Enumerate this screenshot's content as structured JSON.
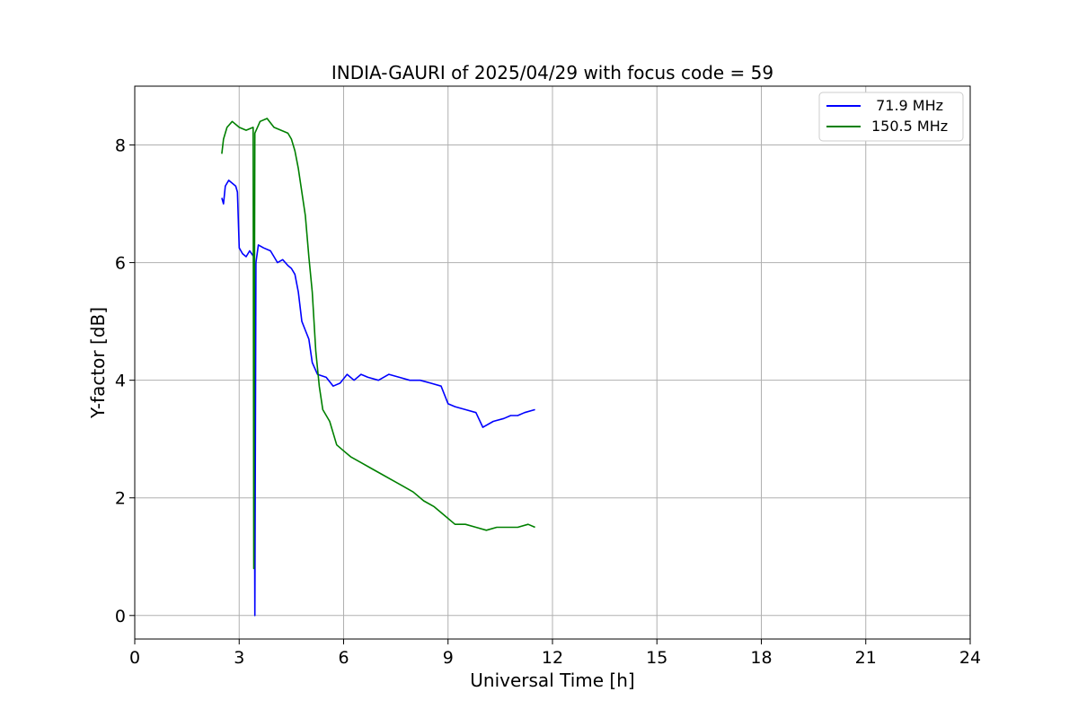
{
  "chart_data": {
    "type": "line",
    "title": "INDIA-GAURI of 2025/04/29 with focus code = 59",
    "xlabel": "Universal Time [h]",
    "ylabel": "Y-factor [dB]",
    "xlim": [
      0,
      24
    ],
    "ylim": [
      -0.4,
      9.0
    ],
    "xticks": [
      0,
      3,
      6,
      9,
      12,
      15,
      18,
      21,
      24
    ],
    "yticks": [
      0,
      2,
      4,
      6,
      8
    ],
    "grid": true,
    "legend_position": "top-right",
    "series": [
      {
        "name": " 71.9 MHz",
        "color": "#0000ff",
        "points": [
          [
            2.5,
            7.1
          ],
          [
            2.55,
            7.0
          ],
          [
            2.6,
            7.3
          ],
          [
            2.7,
            7.4
          ],
          [
            2.8,
            7.35
          ],
          [
            2.9,
            7.3
          ],
          [
            2.95,
            7.2
          ],
          [
            3.0,
            6.25
          ],
          [
            3.05,
            6.2
          ],
          [
            3.1,
            6.15
          ],
          [
            3.2,
            6.1
          ],
          [
            3.3,
            6.2
          ],
          [
            3.42,
            6.1
          ],
          [
            3.45,
            0.0
          ],
          [
            3.48,
            6.0
          ],
          [
            3.55,
            6.3
          ],
          [
            3.7,
            6.25
          ],
          [
            3.9,
            6.2
          ],
          [
            4.0,
            6.1
          ],
          [
            4.1,
            6.0
          ],
          [
            4.25,
            6.05
          ],
          [
            4.4,
            5.95
          ],
          [
            4.5,
            5.9
          ],
          [
            4.6,
            5.8
          ],
          [
            4.7,
            5.5
          ],
          [
            4.8,
            5.0
          ],
          [
            4.9,
            4.85
          ],
          [
            5.0,
            4.7
          ],
          [
            5.1,
            4.3
          ],
          [
            5.25,
            4.1
          ],
          [
            5.5,
            4.05
          ],
          [
            5.7,
            3.9
          ],
          [
            5.9,
            3.95
          ],
          [
            6.1,
            4.1
          ],
          [
            6.3,
            4.0
          ],
          [
            6.5,
            4.1
          ],
          [
            6.7,
            4.05
          ],
          [
            7.0,
            4.0
          ],
          [
            7.3,
            4.1
          ],
          [
            7.6,
            4.05
          ],
          [
            7.9,
            4.0
          ],
          [
            8.2,
            4.0
          ],
          [
            8.5,
            3.95
          ],
          [
            8.8,
            3.9
          ],
          [
            9.0,
            3.6
          ],
          [
            9.2,
            3.55
          ],
          [
            9.5,
            3.5
          ],
          [
            9.8,
            3.45
          ],
          [
            10.0,
            3.2
          ],
          [
            10.3,
            3.3
          ],
          [
            10.6,
            3.35
          ],
          [
            10.8,
            3.4
          ],
          [
            11.0,
            3.4
          ],
          [
            11.2,
            3.45
          ],
          [
            11.5,
            3.5
          ]
        ]
      },
      {
        "name": "150.5 MHz",
        "color": "#008000",
        "points": [
          [
            2.5,
            7.85
          ],
          [
            2.55,
            8.1
          ],
          [
            2.65,
            8.3
          ],
          [
            2.8,
            8.4
          ],
          [
            3.0,
            8.3
          ],
          [
            3.2,
            8.25
          ],
          [
            3.4,
            8.3
          ],
          [
            3.42,
            0.8
          ],
          [
            3.45,
            8.2
          ],
          [
            3.6,
            8.4
          ],
          [
            3.8,
            8.45
          ],
          [
            4.0,
            8.3
          ],
          [
            4.2,
            8.25
          ],
          [
            4.4,
            8.2
          ],
          [
            4.5,
            8.1
          ],
          [
            4.6,
            7.9
          ],
          [
            4.7,
            7.6
          ],
          [
            4.8,
            7.2
          ],
          [
            4.9,
            6.8
          ],
          [
            5.0,
            6.1
          ],
          [
            5.1,
            5.5
          ],
          [
            5.2,
            4.5
          ],
          [
            5.3,
            3.9
          ],
          [
            5.4,
            3.5
          ],
          [
            5.6,
            3.3
          ],
          [
            5.8,
            2.9
          ],
          [
            6.0,
            2.8
          ],
          [
            6.2,
            2.7
          ],
          [
            6.5,
            2.6
          ],
          [
            6.8,
            2.5
          ],
          [
            7.1,
            2.4
          ],
          [
            7.4,
            2.3
          ],
          [
            7.7,
            2.2
          ],
          [
            8.0,
            2.1
          ],
          [
            8.3,
            1.95
          ],
          [
            8.6,
            1.85
          ],
          [
            8.9,
            1.7
          ],
          [
            9.2,
            1.55
          ],
          [
            9.5,
            1.55
          ],
          [
            9.8,
            1.5
          ],
          [
            10.1,
            1.45
          ],
          [
            10.4,
            1.5
          ],
          [
            10.7,
            1.5
          ],
          [
            11.0,
            1.5
          ],
          [
            11.3,
            1.55
          ],
          [
            11.5,
            1.5
          ]
        ]
      }
    ]
  }
}
